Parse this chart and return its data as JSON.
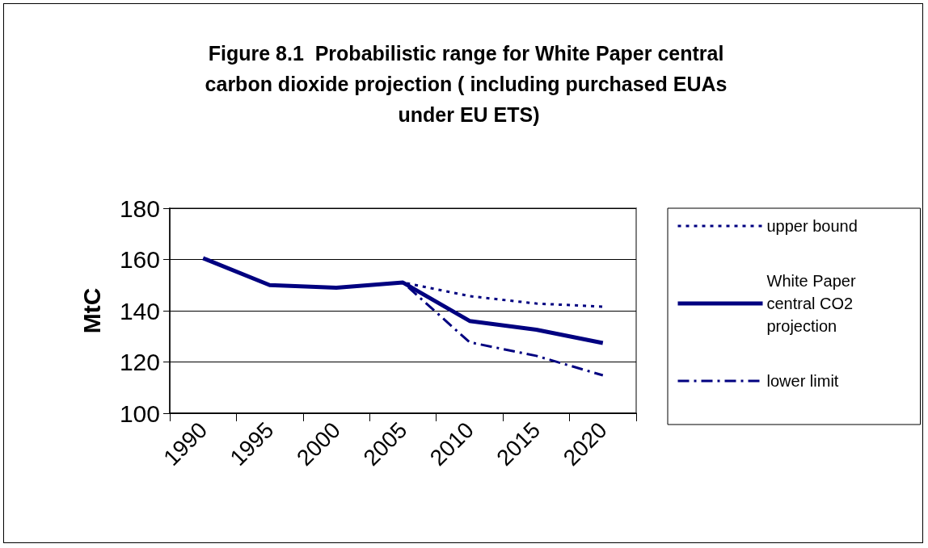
{
  "chart_data": {
    "type": "line",
    "title": "Figure 8.1  Probabilistic range for White Paper central carbon dioxide projection ( including purchased EUAs under EU ETS)",
    "ylabel": "MtC",
    "categories": [
      "1990",
      "1995",
      "2000",
      "2005",
      "2010",
      "2015",
      "2020"
    ],
    "series": [
      {
        "name": "upper bound",
        "color": "#000080",
        "line_style": "dotted",
        "values": [
          null,
          150,
          149,
          151,
          145.7,
          142.8,
          141.6
        ]
      },
      {
        "name": "White Paper central CO2 projection",
        "color": "#000080",
        "line_style": "solid",
        "values": [
          160.5,
          150,
          149,
          151,
          136,
          132.6,
          127.4
        ]
      },
      {
        "name": "lower limit",
        "color": "#000080",
        "line_style": "dashdot",
        "values": [
          null,
          150,
          149,
          151,
          127.7,
          122.4,
          114.8
        ]
      }
    ],
    "ylim": [
      100,
      180
    ],
    "yticks": [
      100,
      120,
      140,
      160,
      180
    ],
    "grid": "y",
    "legend": "right",
    "marker": "none"
  }
}
